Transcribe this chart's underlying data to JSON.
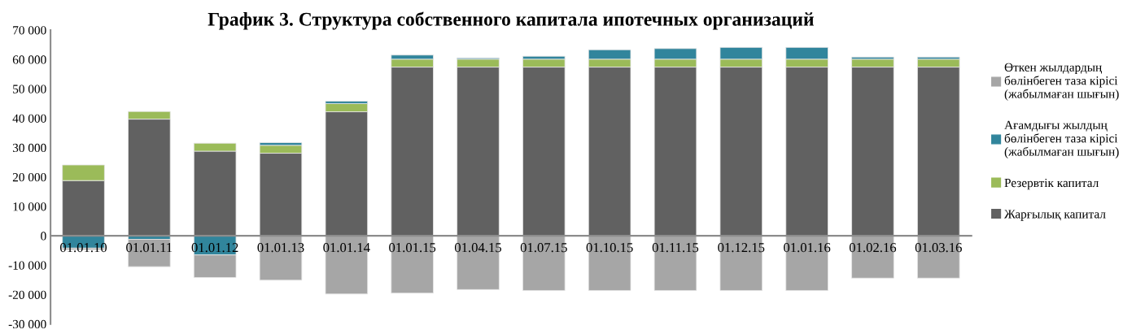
{
  "chart_data": {
    "type": "bar",
    "stacked": true,
    "title": "График 3. Структура собственного капитала ипотечных организаций",
    "categories": [
      "01.01.10",
      "01.01.11",
      "01.01.12",
      "01.01.13",
      "01.01.14",
      "01.01.15",
      "01.04.15",
      "01.07.15",
      "01.10.15",
      "01.11.15",
      "01.12.15",
      "01.01.16",
      "01.02.16",
      "01.03.16"
    ],
    "series": [
      {
        "name": "Жарғылық капитал",
        "color": "#616161",
        "values": [
          18800,
          39700,
          28800,
          28100,
          42200,
          57400,
          57400,
          57400,
          57400,
          57400,
          57400,
          57400,
          57400,
          57400
        ]
      },
      {
        "name": "Резервтік капитал",
        "color": "#9bbb59",
        "values": [
          5300,
          2600,
          2700,
          2700,
          2800,
          2700,
          2700,
          2700,
          2700,
          2700,
          2700,
          2700,
          2700,
          2700
        ]
      },
      {
        "name": "Ағамдығы жылдың\nбөлінбеген таза кірісі\n(жабылмаған шығын)",
        "color": "#31859c",
        "values": [
          -4200,
          -1200,
          -6500,
          900,
          800,
          1400,
          400,
          1000,
          3200,
          3600,
          4000,
          4000,
          700,
          700
        ]
      },
      {
        "name": "Өткен жылдардың\nбөлінбеген таза кірісі\n(жабылмаған шығын)",
        "color": "#a6a6a6",
        "values": [
          -500,
          -9300,
          -7700,
          -15100,
          -19800,
          -19500,
          -18300,
          -18600,
          -18600,
          -18600,
          -18600,
          -18600,
          -14400,
          -14400
        ]
      }
    ],
    "ylim": [
      -30000,
      70000
    ],
    "yticks": [
      {
        "value": -30000,
        "label": "-30 000"
      },
      {
        "value": -20000,
        "label": "-20 000"
      },
      {
        "value": -10000,
        "label": "-10 000"
      },
      {
        "value": 0,
        "label": "0"
      },
      {
        "value": 10000,
        "label": "10 000"
      },
      {
        "value": 20000,
        "label": "20 000"
      },
      {
        "value": 30000,
        "label": "30 000"
      },
      {
        "value": 40000,
        "label": "40 000"
      },
      {
        "value": 50000,
        "label": "50 000"
      },
      {
        "value": 60000,
        "label": "60 000"
      },
      {
        "value": 70000,
        "label": "70 000"
      }
    ],
    "grid": false,
    "legend": "right"
  }
}
